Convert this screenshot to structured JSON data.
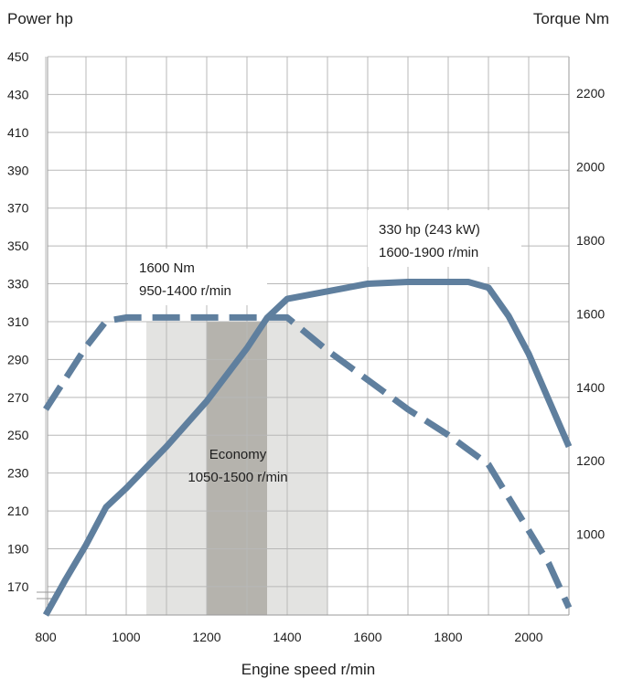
{
  "chart_data": {
    "type": "line",
    "title": "",
    "xlabel": "Engine speed r/min",
    "ylabel_left": "Power hp",
    "ylabel_right": "Torque Nm",
    "xlim": [
      800,
      2100
    ],
    "ylim_left": [
      155,
      450
    ],
    "ylim_right": [
      780,
      2300
    ],
    "x_ticks": [
      "800",
      "1000",
      "1200",
      "1400",
      "1600",
      "1800",
      "2000"
    ],
    "y_left_ticks": [
      "450",
      "430",
      "410",
      "390",
      "370",
      "350",
      "330",
      "310",
      "290",
      "270",
      "250",
      "230",
      "210",
      "190",
      "170"
    ],
    "y_right_ticks": [
      "2200",
      "2000",
      "1800",
      "1600",
      "1400",
      "1200",
      "1000"
    ],
    "grid": true,
    "bands": [
      {
        "label": "Economy",
        "range_label": "1050-1500 r/min",
        "x_start": 1050,
        "x_end": 1500,
        "color": "#e3e3e1"
      },
      {
        "x_start": 1200,
        "x_end": 1350,
        "color": "#b5b3ad"
      }
    ],
    "series": [
      {
        "name": "Power hp",
        "axis": "left",
        "style": "solid",
        "color": "#5f7f9e",
        "x": [
          800,
          850,
          900,
          950,
          1000,
          1100,
          1200,
          1300,
          1350,
          1400,
          1500,
          1600,
          1700,
          1800,
          1850,
          1900,
          1950,
          2000,
          2100
        ],
        "y": [
          155,
          174,
          192,
          212,
          222,
          244,
          268,
          296,
          312,
          322,
          326,
          330,
          331,
          331,
          331,
          328,
          313,
          293,
          244
        ]
      },
      {
        "name": "Torque Nm",
        "axis": "right",
        "style": "dashed",
        "color": "#5f7f9e",
        "x": [
          800,
          900,
          950,
          1000,
          1100,
          1200,
          1300,
          1400,
          1500,
          1600,
          1700,
          1800,
          1900,
          1950,
          2000,
          2050,
          2100
        ],
        "y": [
          1340,
          1510,
          1580,
          1590,
          1590,
          1590,
          1590,
          1590,
          1500,
          1420,
          1340,
          1270,
          1190,
          1100,
          1010,
          920,
          800
        ]
      }
    ],
    "annotations": [
      {
        "line1": "1600 Nm",
        "line2": "950-1400 r/min"
      },
      {
        "line1": "330 hp (243 kW)",
        "line2": "1600-1900 r/min"
      },
      {
        "line1": "Economy",
        "line2": "1050-1500 r/min"
      }
    ]
  }
}
